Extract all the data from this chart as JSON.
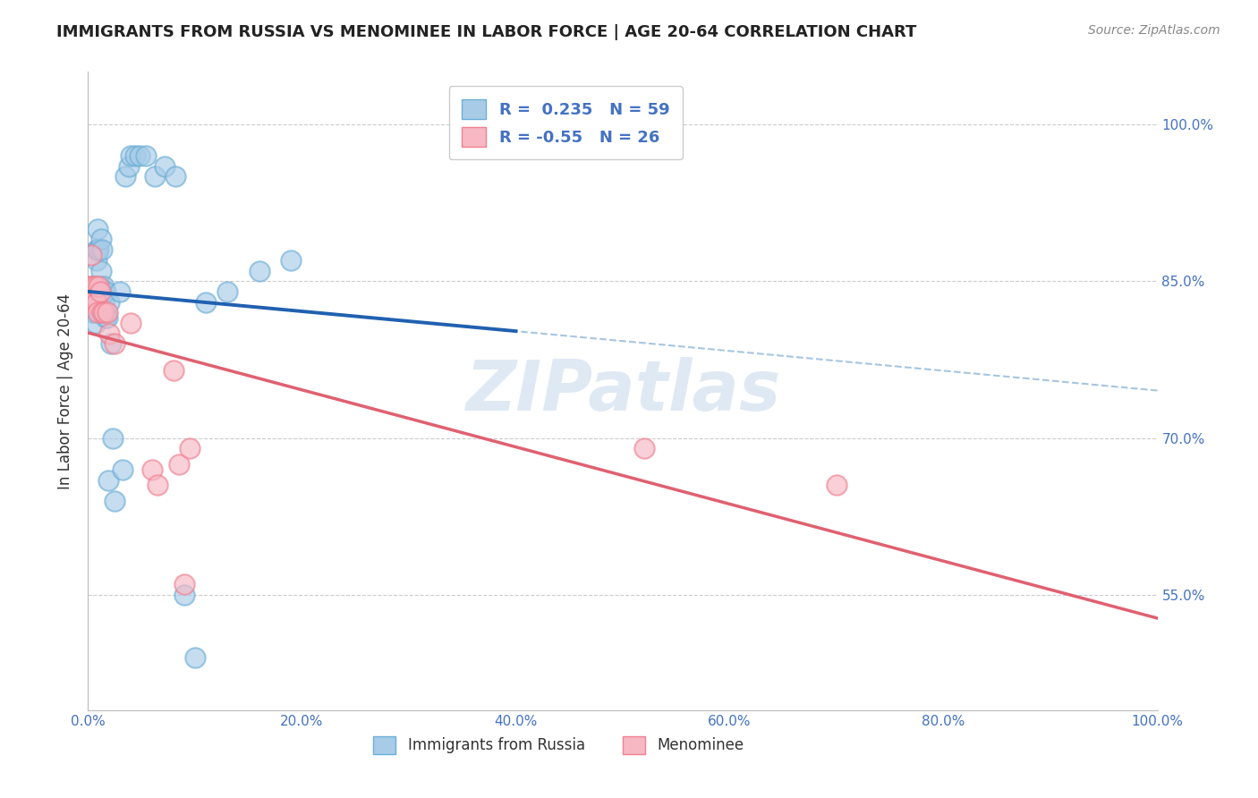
{
  "title": "IMMIGRANTS FROM RUSSIA VS MENOMINEE IN LABOR FORCE | AGE 20-64 CORRELATION CHART",
  "source": "Source: ZipAtlas.com",
  "ylabel": "In Labor Force | Age 20-64",
  "russia_R": 0.235,
  "russia_N": 59,
  "menominee_R": -0.55,
  "menominee_N": 26,
  "russia_color": "#a8cce8",
  "russia_edge_color": "#6baed6",
  "menominee_color": "#f7b8c4",
  "menominee_edge_color": "#f08090",
  "russia_line_color": "#2060b0",
  "menominee_line_color": "#e06070",
  "dashed_line_color": "#90b8d8",
  "watermark": "ZIPatlas",
  "ytick_vals": [
    0.55,
    0.7,
    0.85,
    1.0
  ],
  "ytick_labels": [
    "55.0%",
    "70.0%",
    "85.0%",
    "100.0%"
  ],
  "xtick_vals": [
    0,
    20,
    40,
    60,
    80,
    100
  ],
  "xtick_labels": [
    "0.0%",
    "20.0%",
    "40.0%",
    "60.0%",
    "80.0%",
    "100.0%"
  ],
  "russia_x": [
    0.1,
    0.2,
    0.2,
    0.3,
    0.3,
    0.3,
    0.4,
    0.4,
    0.4,
    0.5,
    0.5,
    0.5,
    0.5,
    0.6,
    0.6,
    0.6,
    0.7,
    0.7,
    0.8,
    0.8,
    0.8,
    0.9,
    0.9,
    1.0,
    1.0,
    1.1,
    1.1,
    1.2,
    1.2,
    1.3,
    1.4,
    1.5,
    1.5,
    1.6,
    1.6,
    1.7,
    1.8,
    1.9,
    2.0,
    2.1,
    2.3,
    2.5,
    3.0,
    3.2,
    3.5,
    3.8,
    4.0,
    4.4,
    4.8,
    5.4,
    6.2,
    7.2,
    8.2,
    9.0,
    10.0,
    11.0,
    13.0,
    16.0,
    19.0
  ],
  "russia_y": [
    0.83,
    0.84,
    0.825,
    0.84,
    0.845,
    0.83,
    0.84,
    0.835,
    0.82,
    0.84,
    0.835,
    0.845,
    0.82,
    0.84,
    0.835,
    0.82,
    0.845,
    0.81,
    0.88,
    0.87,
    0.84,
    0.9,
    0.88,
    0.845,
    0.88,
    0.845,
    0.83,
    0.89,
    0.86,
    0.88,
    0.82,
    0.845,
    0.83,
    0.84,
    0.815,
    0.82,
    0.815,
    0.66,
    0.83,
    0.79,
    0.7,
    0.64,
    0.84,
    0.67,
    0.95,
    0.96,
    0.97,
    0.97,
    0.97,
    0.97,
    0.95,
    0.96,
    0.95,
    0.55,
    0.49,
    0.83,
    0.84,
    0.86,
    0.87
  ],
  "menominee_x": [
    0.1,
    0.2,
    0.3,
    0.3,
    0.4,
    0.5,
    0.6,
    0.7,
    0.8,
    0.9,
    1.0,
    1.1,
    1.3,
    1.5,
    1.8,
    2.0,
    2.5,
    4.0,
    6.0,
    6.5,
    8.0,
    8.5,
    9.0,
    9.5,
    52.0,
    70.0
  ],
  "menominee_y": [
    0.84,
    0.845,
    0.83,
    0.875,
    0.845,
    0.83,
    0.835,
    0.845,
    0.83,
    0.82,
    0.845,
    0.84,
    0.82,
    0.82,
    0.82,
    0.8,
    0.79,
    0.81,
    0.67,
    0.655,
    0.765,
    0.675,
    0.56,
    0.69,
    0.69,
    0.655
  ],
  "xmin": 0,
  "xmax": 100,
  "ymin": 0.44,
  "ymax": 1.05
}
